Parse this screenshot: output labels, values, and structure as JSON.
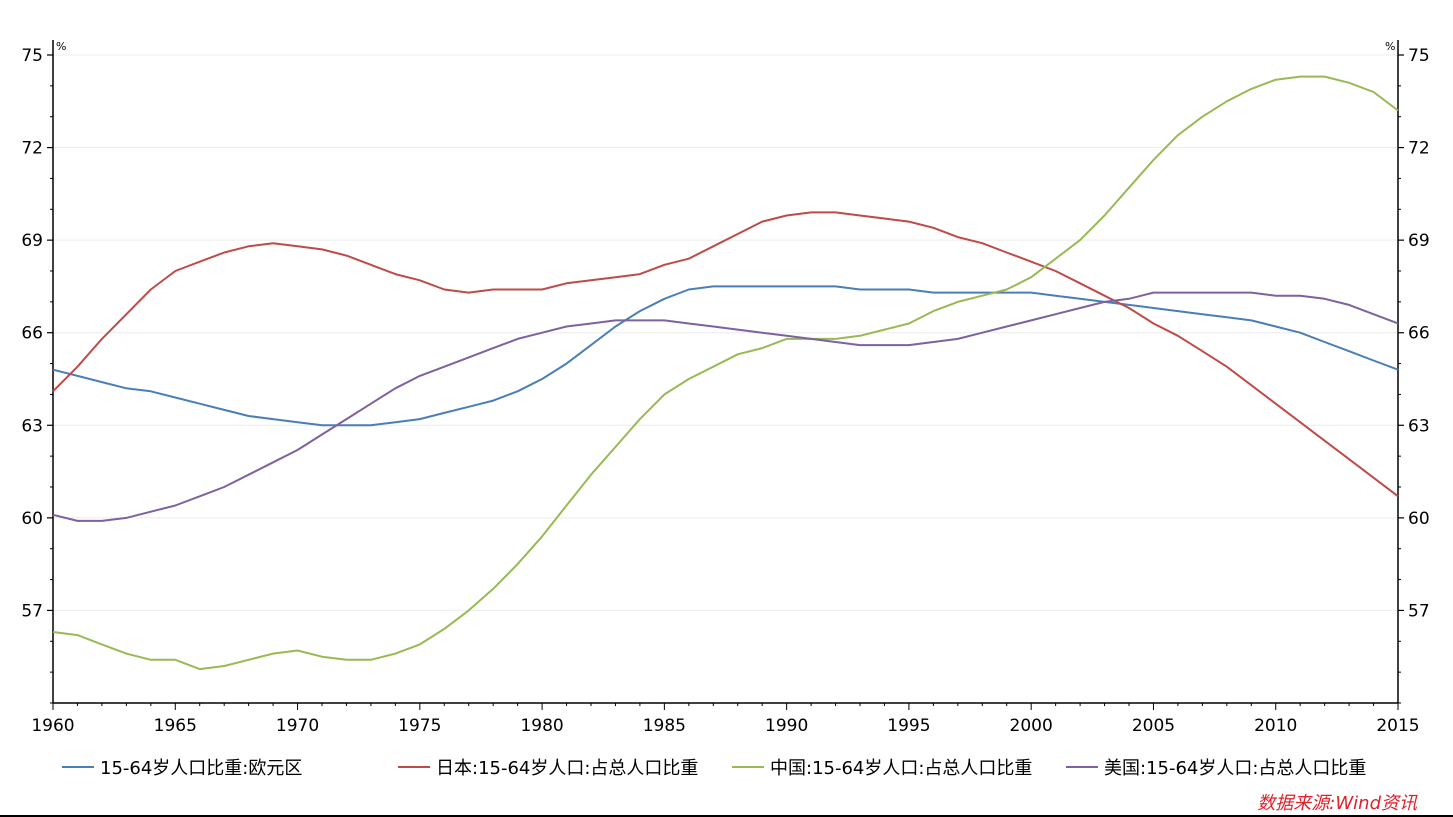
{
  "chart_data": {
    "type": "line",
    "title": "",
    "xlabel": "",
    "ylabel": "%",
    "y_unit_left": "%",
    "y_unit_right": "%",
    "xlim": [
      1960,
      2015
    ],
    "ylim": [
      54,
      75
    ],
    "x_ticks": [
      1960,
      1965,
      1970,
      1975,
      1980,
      1985,
      1990,
      1995,
      2000,
      2005,
      2010,
      2015
    ],
    "y_ticks": [
      57,
      60,
      63,
      66,
      69,
      72,
      75
    ],
    "grid": true,
    "legend_position": "bottom",
    "x": [
      1960,
      1961,
      1962,
      1963,
      1964,
      1965,
      1966,
      1967,
      1968,
      1969,
      1970,
      1971,
      1972,
      1973,
      1974,
      1975,
      1976,
      1977,
      1978,
      1979,
      1980,
      1981,
      1982,
      1983,
      1984,
      1985,
      1986,
      1987,
      1988,
      1989,
      1990,
      1991,
      1992,
      1993,
      1994,
      1995,
      1996,
      1997,
      1998,
      1999,
      2000,
      2001,
      2002,
      2003,
      2004,
      2005,
      2006,
      2007,
      2008,
      2009,
      2010,
      2011,
      2012,
      2013,
      2014,
      2015
    ],
    "series": [
      {
        "name": "15-64岁人口比重:欧元区",
        "color": "#4a7fb5",
        "values": [
          64.8,
          64.6,
          64.4,
          64.2,
          64.1,
          63.9,
          63.7,
          63.5,
          63.3,
          63.2,
          63.1,
          63.0,
          63.0,
          63.0,
          63.1,
          63.2,
          63.4,
          63.6,
          63.8,
          64.1,
          64.5,
          65.0,
          65.6,
          66.2,
          66.7,
          67.1,
          67.4,
          67.5,
          67.5,
          67.5,
          67.5,
          67.5,
          67.5,
          67.4,
          67.4,
          67.4,
          67.3,
          67.3,
          67.3,
          67.3,
          67.3,
          67.2,
          67.1,
          67.0,
          66.9,
          66.8,
          66.7,
          66.6,
          66.5,
          66.4,
          66.2,
          66.0,
          65.7,
          65.4,
          65.1,
          64.8
        ]
      },
      {
        "name": "日本:15-64岁人口:占总人口比重",
        "color": "#be4b48",
        "values": [
          64.1,
          64.9,
          65.8,
          66.6,
          67.4,
          68.0,
          68.3,
          68.6,
          68.8,
          68.9,
          68.8,
          68.7,
          68.5,
          68.2,
          67.9,
          67.7,
          67.4,
          67.3,
          67.4,
          67.4,
          67.4,
          67.6,
          67.7,
          67.8,
          67.9,
          68.2,
          68.4,
          68.8,
          69.2,
          69.6,
          69.8,
          69.9,
          69.9,
          69.8,
          69.7,
          69.6,
          69.4,
          69.1,
          68.9,
          68.6,
          68.3,
          68.0,
          67.6,
          67.2,
          66.8,
          66.3,
          65.9,
          65.4,
          64.9,
          64.3,
          63.7,
          63.1,
          62.5,
          61.9,
          61.3,
          60.7
        ]
      },
      {
        "name": "中国:15-64岁人口:占总人口比重",
        "color": "#98b954",
        "values": [
          56.3,
          56.2,
          55.9,
          55.6,
          55.4,
          55.4,
          55.1,
          55.2,
          55.4,
          55.6,
          55.7,
          55.5,
          55.4,
          55.4,
          55.6,
          55.9,
          56.4,
          57.0,
          57.7,
          58.5,
          59.4,
          60.4,
          61.4,
          62.3,
          63.2,
          64.0,
          64.5,
          64.9,
          65.3,
          65.5,
          65.8,
          65.8,
          65.8,
          65.9,
          66.1,
          66.3,
          66.7,
          67.0,
          67.2,
          67.4,
          67.8,
          68.4,
          69.0,
          69.8,
          70.7,
          71.6,
          72.4,
          73.0,
          73.5,
          73.9,
          74.2,
          74.3,
          74.3,
          74.1,
          73.8,
          73.2
        ]
      },
      {
        "name": "美国:15-64岁人口:占总人口比重",
        "color": "#7d61a0",
        "values": [
          60.1,
          59.9,
          59.9,
          60.0,
          60.2,
          60.4,
          60.7,
          61.0,
          61.4,
          61.8,
          62.2,
          62.7,
          63.2,
          63.7,
          64.2,
          64.6,
          64.9,
          65.2,
          65.5,
          65.8,
          66.0,
          66.2,
          66.3,
          66.4,
          66.4,
          66.4,
          66.3,
          66.2,
          66.1,
          66.0,
          65.9,
          65.8,
          65.7,
          65.6,
          65.6,
          65.6,
          65.7,
          65.8,
          66.0,
          66.2,
          66.4,
          66.6,
          66.8,
          67.0,
          67.1,
          67.3,
          67.3,
          67.3,
          67.3,
          67.3,
          67.2,
          67.2,
          67.1,
          66.9,
          66.6,
          66.3
        ]
      }
    ]
  },
  "source_text": "数据来源:Wind资讯"
}
